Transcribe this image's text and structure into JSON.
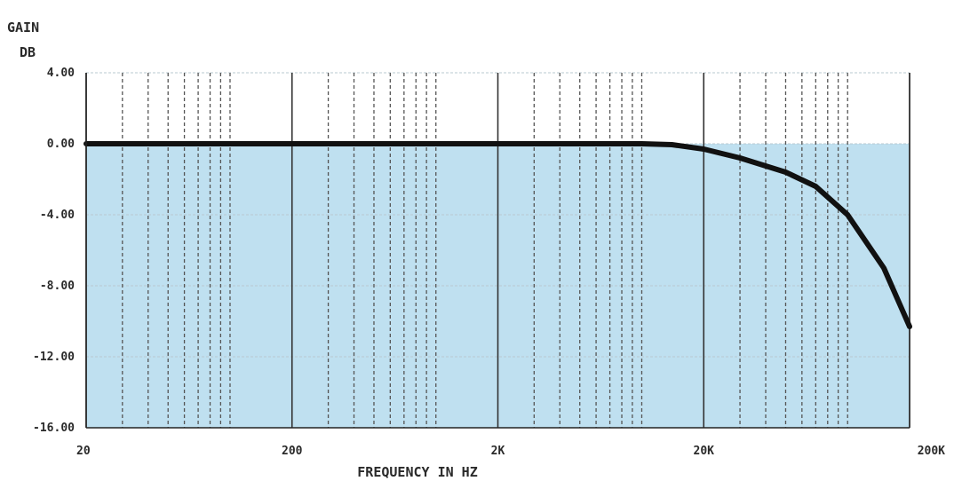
{
  "chart_data": {
    "type": "line",
    "ylabel_line1": "GAIN",
    "ylabel_line2": "DB",
    "xlabel": "FREQUENCY IN HZ",
    "x_scale": "log",
    "xlim": [
      20,
      200000
    ],
    "ylim": [
      -16,
      4
    ],
    "y_ticks": [
      4,
      0,
      -4,
      -8,
      -12,
      -16
    ],
    "y_tick_labels": [
      "4.00",
      "0.00",
      "-4.00",
      "-8.00",
      "-12.00",
      "-16.00"
    ],
    "x_ticks": [
      20,
      200,
      2000,
      20000,
      200000
    ],
    "x_tick_labels": [
      "20",
      "200",
      "2K",
      "20K",
      "200K"
    ],
    "grid": true,
    "fill_color": "#bfe0f0",
    "line_color": "#111111",
    "series": [
      {
        "x": [
          20,
          100,
          1000,
          5000,
          10000,
          14000,
          20000,
          30000,
          50000,
          70000,
          100000,
          150000,
          200000
        ],
        "y": [
          0,
          0,
          0,
          0,
          0,
          -0.05,
          -0.3,
          -0.8,
          -1.6,
          -2.4,
          -4.0,
          -7.0,
          -10.3
        ]
      }
    ]
  }
}
